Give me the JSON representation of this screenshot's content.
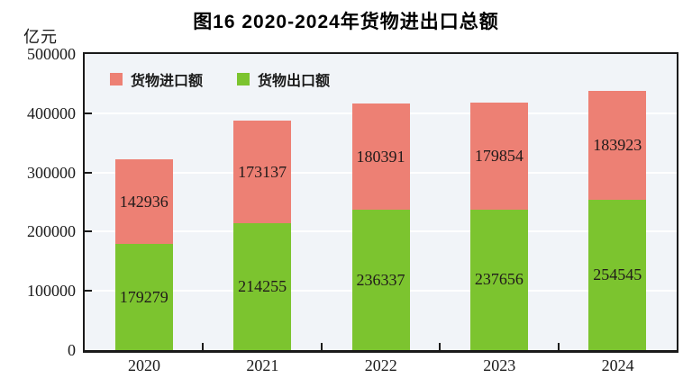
{
  "title": "图16  2020-2024年货物进出口总额",
  "unit_label": "亿元",
  "legend": [
    {
      "label": "货物进口额",
      "color": "#ED8074"
    },
    {
      "label": "货物出口额",
      "color": "#7CC42F"
    }
  ],
  "colors": {
    "import_red": "#ED8074",
    "export_green": "#7CC42F",
    "plot_background": "#F1F4F8",
    "gridline": "#FFFFFF",
    "axis": "#1a1a1a"
  },
  "chart_data": {
    "type": "bar",
    "stacked": true,
    "title": "图16  2020-2024年货物进出口总额",
    "ylabel": "亿元",
    "categories": [
      "2020",
      "2021",
      "2022",
      "2023",
      "2024"
    ],
    "series": [
      {
        "name": "货物出口额",
        "color": "#7CC42F",
        "values": [
          179279,
          214255,
          236337,
          237656,
          254545
        ]
      },
      {
        "name": "货物进口额",
        "color": "#ED8074",
        "values": [
          142936,
          173137,
          180391,
          179854,
          183923
        ]
      }
    ],
    "ylim": [
      0,
      500000
    ],
    "ytick_step": 100000,
    "yticks": [
      0,
      100000,
      200000,
      300000,
      400000,
      500000
    ],
    "grid": true,
    "legend_position": "top-left-inside"
  }
}
